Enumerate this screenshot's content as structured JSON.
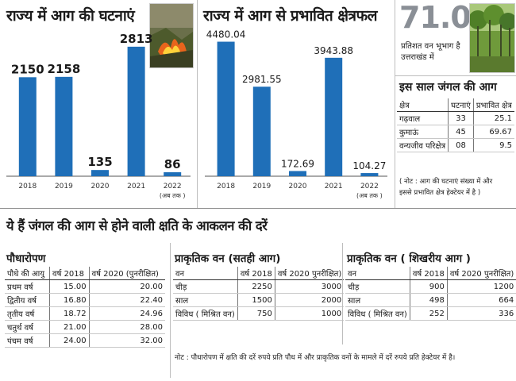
{
  "chart_data": [
    {
      "type": "bar",
      "title": "राज्य में आग की घटनाएं",
      "categories": [
        "2018",
        "2019",
        "2020",
        "2021",
        "2022"
      ],
      "category_notes": [
        "",
        "",
        "",
        "",
        "(अब तक )"
      ],
      "values": [
        2150,
        2158,
        135,
        2813,
        86
      ],
      "value_labels": [
        "2150",
        "2158",
        "135",
        "2813",
        "86"
      ],
      "color": "#1f6fb8",
      "ylim": [
        0,
        3000
      ]
    },
    {
      "type": "bar",
      "title": "राज्य में आग से प्रभावित क्षेत्रफल",
      "categories": [
        "2018",
        "2019",
        "2020",
        "2021",
        "2022"
      ],
      "category_notes": [
        "",
        "",
        "",
        "",
        "(अब तक )"
      ],
      "values": [
        4480.04,
        2981.55,
        172.69,
        3943.88,
        104.27
      ],
      "value_labels": [
        "4480.04",
        "2981.55",
        "172.69",
        "3943.88",
        "104.27"
      ],
      "color": "#1f6fb8",
      "ylim": [
        0,
        4600
      ]
    }
  ],
  "forest": {
    "percent": "71.05",
    "caption_line1": "प्रतिशत वन भूभाग है",
    "caption_line2": "उत्तराखंड में"
  },
  "fires_table": {
    "title": "इस साल जंगल की आग",
    "headers": [
      "क्षेत्र",
      "घटनाएं",
      "प्रभावित क्षेत्र"
    ],
    "rows": [
      [
        "गढ़वाल",
        "33",
        "25.1"
      ],
      [
        "कुमाऊं",
        "45",
        "69.67"
      ],
      [
        "वन्यजीव परिक्षेत्र",
        "08",
        "9.5"
      ]
    ],
    "note_line1": "( नोट : आग की घटनाएं संख्या में और",
    "note_line2": "इससे प्रभावित क्षेत्र हेक्टेयर में है )"
  },
  "loss_section": {
    "title": "ये हैं जंगल की आग से होने वाली क्षति के आकलन की दरें",
    "plantation": {
      "title": "पौधारोपण",
      "headers": [
        "पौधे की आयु",
        "वर्ष 2018",
        "वर्ष 2020 (पुनरीक्षित)"
      ],
      "rows": [
        [
          "प्रथम वर्ष",
          "15.00",
          "20.00"
        ],
        [
          "द्वितीय वर्ष",
          "16.80",
          "22.40"
        ],
        [
          "तृतीय वर्ष",
          "18.72",
          "24.96"
        ],
        [
          "चतुर्थ वर्ष",
          "21.00",
          "28.00"
        ],
        [
          "पंचम वर्ष",
          "24.00",
          "32.00"
        ]
      ]
    },
    "natural_surface": {
      "title": "प्राकृतिक वन (सतही आग)",
      "headers": [
        "वन",
        "वर्ष 2018",
        "वर्ष 2020 पुनरीक्षित)"
      ],
      "rows": [
        [
          "चीड़",
          "2250",
          "3000"
        ],
        [
          "साल",
          "1500",
          "2000"
        ],
        [
          "विविध ( मिश्रित वन)",
          "750",
          "1000"
        ]
      ]
    },
    "natural_crown": {
      "title": "प्राकृतिक वन ( शिखरीय आग )",
      "headers": [
        "वन",
        "वर्ष 2018",
        "वर्ष 2020 पुनरीक्षित)"
      ],
      "rows": [
        [
          "चीड़",
          "900",
          "1200"
        ],
        [
          "साल",
          "498",
          "664"
        ],
        [
          "विविध ( मिश्रित वन)",
          "252",
          "336"
        ]
      ]
    },
    "note": "नोट : पौधारोपण में क्षति की दरें रुपये प्रति पौध में और प्राकृतिक वनों के मामले में दरें रुपये प्रति हेक्टेयर में है।"
  }
}
